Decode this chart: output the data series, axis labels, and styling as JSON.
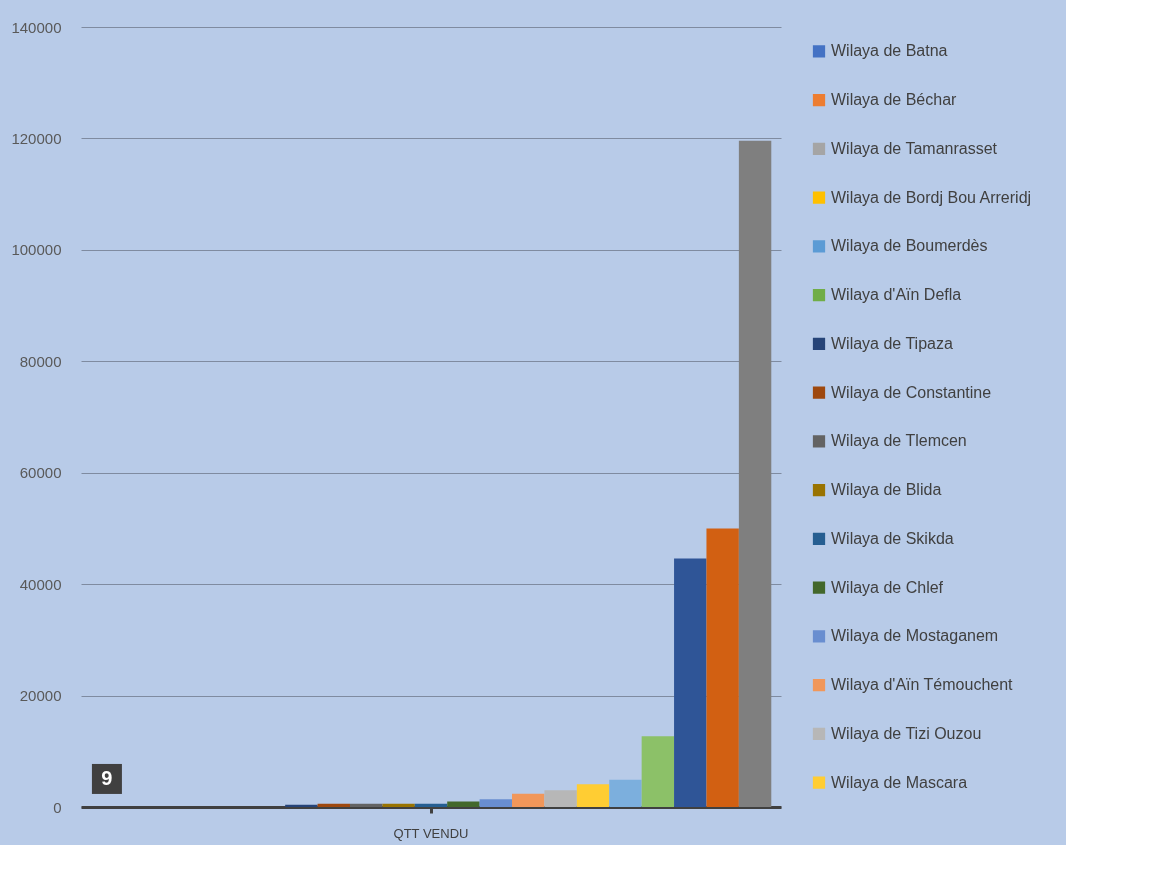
{
  "chart_data": {
    "type": "bar",
    "categories": [
      "QTT VENDU"
    ],
    "series": [
      {
        "name": "Wilaya de Batna",
        "color": "#4472c4",
        "values": [
          9
        ],
        "value_labels": [
          "9"
        ]
      },
      {
        "name": "Wilaya de Béchar",
        "color": "#ed7d31",
        "values": [
          null
        ]
      },
      {
        "name": "Wilaya de Tamanrasset",
        "color": "#a5a5a5",
        "values": [
          null
        ]
      },
      {
        "name": "Wilaya de Bordj Bou Arreridj",
        "color": "#ffc000",
        "values": [
          null
        ]
      },
      {
        "name": "Wilaya de Boumerdès",
        "color": "#5b9bd5",
        "values": [
          null
        ]
      },
      {
        "name": "Wilaya d'Aïn Defla",
        "color": "#70ad47",
        "values": [
          null
        ]
      },
      {
        "name": "Wilaya de Tipaza",
        "color": "#264478",
        "values": [
          400
        ]
      },
      {
        "name": "Wilaya de Constantine",
        "color": "#9e480e",
        "values": [
          600
        ]
      },
      {
        "name": "Wilaya de Tlemcen",
        "color": "#636363",
        "values": [
          600
        ]
      },
      {
        "name": "Wilaya de Blida",
        "color": "#997300",
        "values": [
          600
        ]
      },
      {
        "name": "Wilaya de Skikda",
        "color": "#255e91",
        "values": [
          600
        ]
      },
      {
        "name": "Wilaya de Chlef",
        "color": "#43682b",
        "values": [
          1000
        ]
      },
      {
        "name": "Wilaya de Mostaganem",
        "color": "#698ed0",
        "values": [
          1400
        ]
      },
      {
        "name": "Wilaya d'Aïn Témouchent",
        "color": "#f1975a",
        "values": [
          2400
        ]
      },
      {
        "name": "Wilaya de Tizi Ouzou",
        "color": "#b7b7b7",
        "values": [
          3000
        ]
      },
      {
        "name": "Wilaya de Mascara",
        "color": "#ffcd33",
        "values": [
          4100
        ]
      },
      {
        "color": "#7cafdd",
        "values": [
          4900
        ]
      },
      {
        "color": "#8cc168",
        "values": [
          12700
        ]
      },
      {
        "color": "#2f5597",
        "values": [
          44600
        ]
      },
      {
        "color": "#d26012",
        "values": [
          50000
        ]
      },
      {
        "color": "#7f7f7f",
        "values": [
          119600
        ]
      }
    ],
    "ylim": [
      0,
      140000
    ],
    "yticks": [
      0,
      20000,
      40000,
      60000,
      80000,
      100000,
      120000,
      140000
    ],
    "grid": "y",
    "legend": "right"
  }
}
